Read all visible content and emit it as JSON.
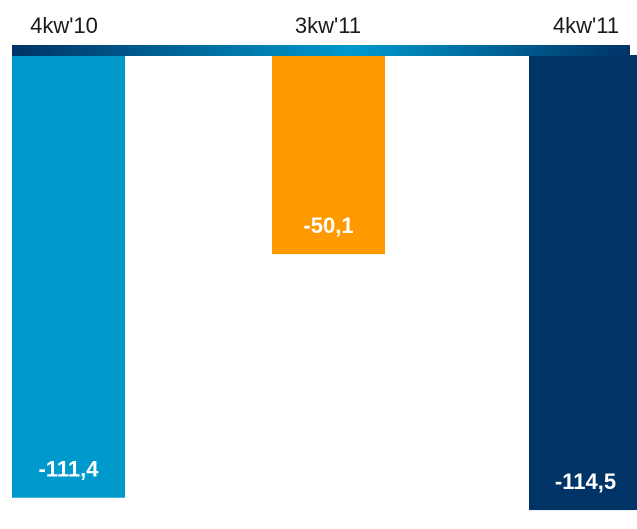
{
  "chart_data": {
    "type": "bar",
    "orientation": "vertical-downward",
    "categories": [
      "4kw'10",
      "3kw'11",
      "4kw'11"
    ],
    "values": [
      -111.4,
      -50.1,
      -114.5
    ],
    "value_labels": [
      "-111,4",
      "-50,1",
      "-114,5"
    ],
    "colors": [
      "#0099cc",
      "#ff9900",
      "#003366"
    ],
    "axis_colors": [
      "#003366",
      "#0099cc"
    ],
    "title": "",
    "xlabel": "",
    "ylabel": "",
    "ylim": [
      -117,
      0
    ],
    "grid": false,
    "legend": "none"
  }
}
